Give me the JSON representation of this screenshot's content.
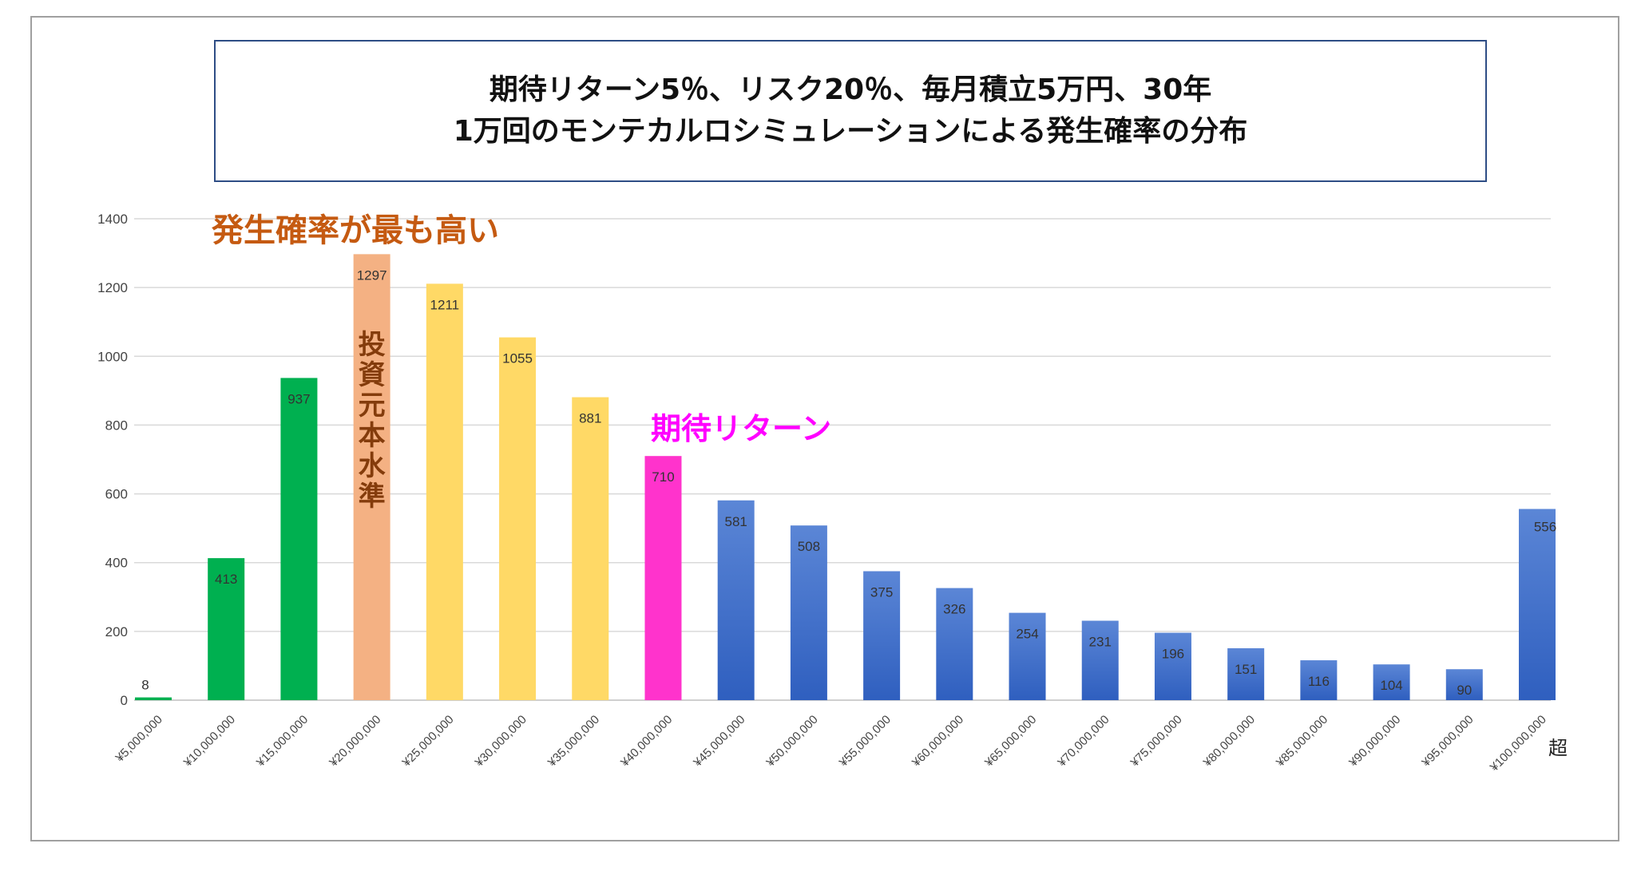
{
  "title": {
    "line1": "期待リターン5％、リスク20％、毎月積立5万円、30年",
    "line2": "1万回のモンテカルロシミュレーションによる発生確率の分布"
  },
  "chart_data": {
    "type": "bar",
    "categories": [
      "¥5,000,000",
      "¥10,000,000",
      "¥15,000,000",
      "¥20,000,000",
      "¥25,000,000",
      "¥30,000,000",
      "¥35,000,000",
      "¥40,000,000",
      "¥45,000,000",
      "¥50,000,000",
      "¥55,000,000",
      "¥60,000,000",
      "¥65,000,000",
      "¥70,000,000",
      "¥75,000,000",
      "¥80,000,000",
      "¥85,000,000",
      "¥90,000,000",
      "¥95,000,000",
      "¥100,000,000"
    ],
    "values": [
      8,
      413,
      937,
      1297,
      1211,
      1055,
      881,
      710,
      581,
      508,
      375,
      326,
      254,
      231,
      196,
      151,
      116,
      104,
      90,
      556
    ],
    "bar_colors": [
      "#00b050",
      "#00b050",
      "#00b050",
      "#f4b183",
      "#ffd966",
      "#ffd966",
      "#ffd966",
      "#ff33cc",
      "#4472c4",
      "#4472c4",
      "#4472c4",
      "#4472c4",
      "#4472c4",
      "#4472c4",
      "#4472c4",
      "#4472c4",
      "#4472c4",
      "#4472c4",
      "#4472c4",
      "#4472c4"
    ],
    "ylim": [
      0,
      1400
    ],
    "yticks": [
      0,
      200,
      400,
      600,
      800,
      1000,
      1200,
      1400
    ],
    "grid": true,
    "last_label_suffix": "超",
    "annotations": {
      "most_likely": "発生確率が最も高い",
      "principal": "投資元本水準",
      "expected_return": "期待リターン"
    },
    "annotation_colors": {
      "most_likely": "#c55a11",
      "principal": "#843c0c",
      "expected_return": "#ff00ff"
    }
  }
}
